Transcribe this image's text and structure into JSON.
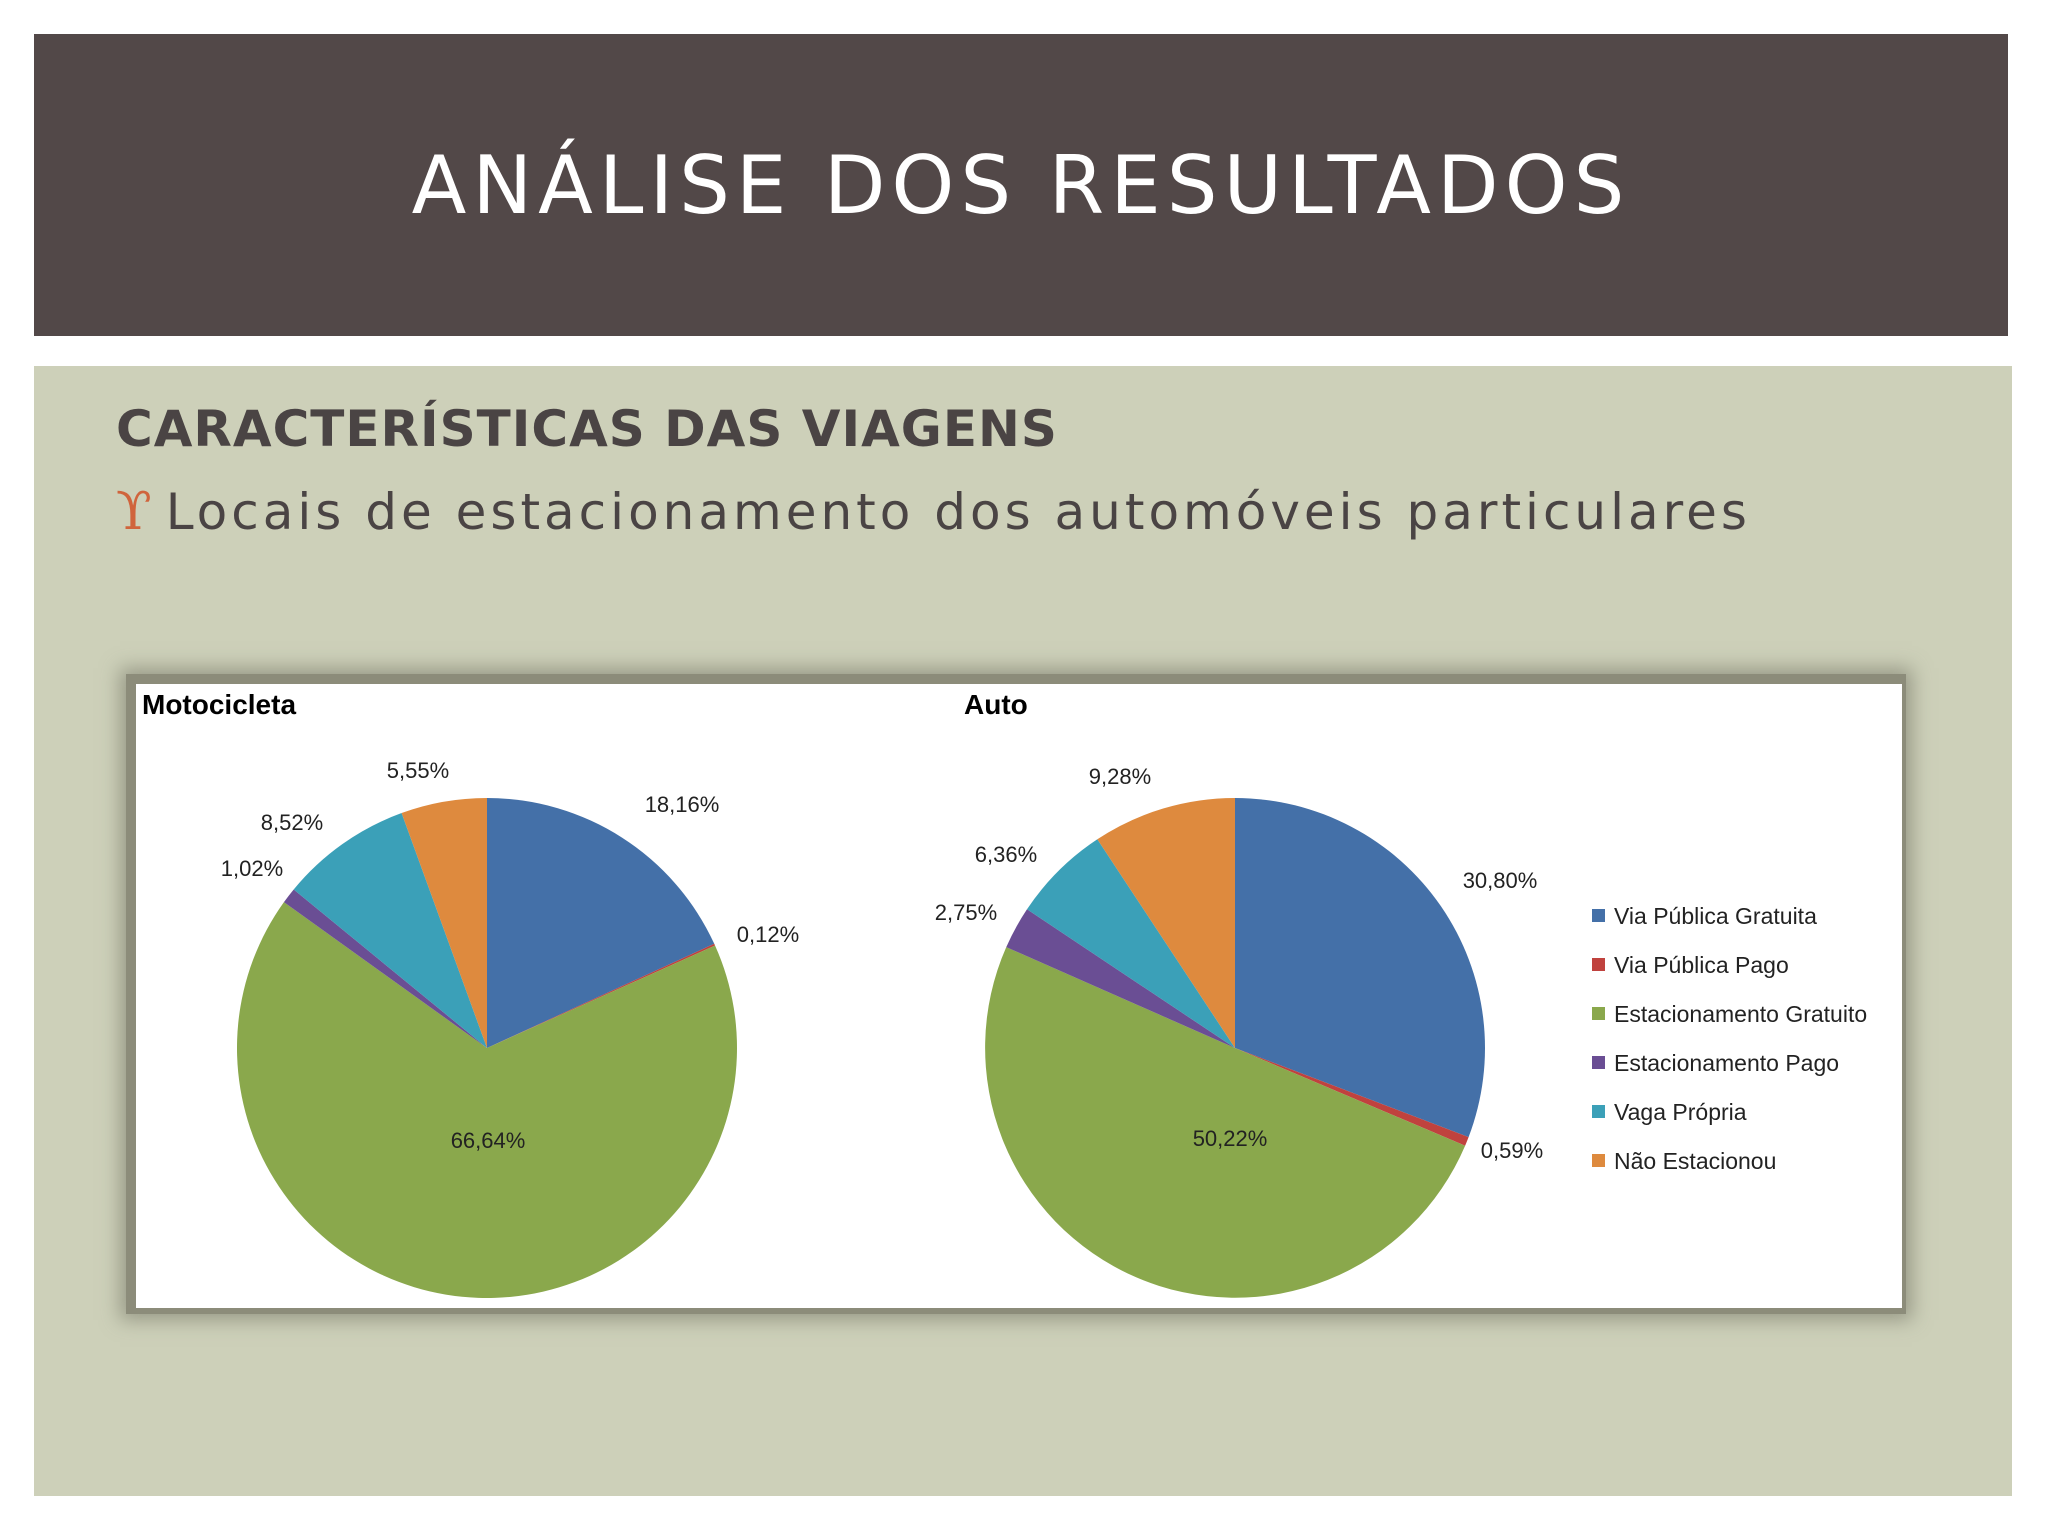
{
  "slide": {
    "title": "ANÁLISE DOS RESULTADOS",
    "subtitle": "CARACTERÍSTICAS DAS VIAGENS",
    "bullet_glyph": "ϒ",
    "bullet_text": "Locais de estacionamento dos automóveis particulares"
  },
  "colors": {
    "header_bg": "#524848",
    "panel_bg": "#cdd0b9",
    "bullet_accent": "#d0643c"
  },
  "chart_data": [
    {
      "type": "pie",
      "title": "Motocicleta",
      "categories": [
        "Via Pública Gratuita",
        "Via Pública Pago",
        "Estacionamento Gratuito",
        "Estacionamento Pago",
        "Vaga Própria",
        "Não Estacionou"
      ],
      "values": [
        18.16,
        0.12,
        66.64,
        1.02,
        8.52,
        5.55
      ],
      "labels": [
        "18,16%",
        "0,12%",
        "66,64%",
        "1,02%",
        "8,52%",
        "5,55%"
      ],
      "colors": [
        "#4470a8",
        "#c0423e",
        "#8aa84c",
        "#6a4e94",
        "#3ba0b8",
        "#de8a3e"
      ],
      "legend": "none"
    },
    {
      "type": "pie",
      "title": "Auto",
      "categories": [
        "Via Pública Gratuita",
        "Via Pública Pago",
        "Estacionamento Gratuito",
        "Estacionamento Pago",
        "Vaga Própria",
        "Não Estacionou"
      ],
      "values": [
        30.8,
        0.59,
        50.22,
        2.75,
        6.36,
        9.28
      ],
      "labels": [
        "30,80%",
        "0,59%",
        "50,22%",
        "2,75%",
        "6,36%",
        "9,28%"
      ],
      "colors": [
        "#4470a8",
        "#c0423e",
        "#8aa84c",
        "#6a4e94",
        "#3ba0b8",
        "#de8a3e"
      ],
      "legend": "right"
    }
  ]
}
